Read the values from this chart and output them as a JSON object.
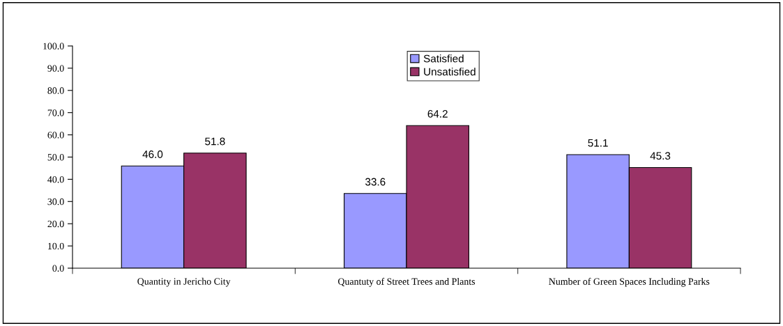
{
  "chart_data": {
    "type": "bar",
    "categories": [
      "Quantity in Jericho City",
      "Quantuty of Street Trees and Plants",
      "Number of Green Spaces Including Parks"
    ],
    "series": [
      {
        "name": "Satisfied",
        "color": "#9999ff",
        "values": [
          46.0,
          33.6,
          51.1
        ],
        "value_labels": [
          "46.0",
          "33.6",
          "51.1"
        ]
      },
      {
        "name": "Unsatisfied",
        "color": "#993366",
        "values": [
          51.8,
          64.2,
          45.3
        ],
        "value_labels": [
          "51.8",
          "64.2",
          "45.3"
        ]
      }
    ],
    "ylim": [
      0,
      100
    ],
    "yticks": [
      {
        "value": 0,
        "label": "0.0"
      },
      {
        "value": 10,
        "label": "10.0"
      },
      {
        "value": 20,
        "label": "20.0"
      },
      {
        "value": 30,
        "label": "30.0"
      },
      {
        "value": 40,
        "label": "40.0"
      },
      {
        "value": 50,
        "label": "50.0"
      },
      {
        "value": 60,
        "label": "60.0"
      },
      {
        "value": 70,
        "label": "70.0"
      },
      {
        "value": 80,
        "label": "80.0"
      },
      {
        "value": 90,
        "label": "90.0"
      },
      {
        "value": 100,
        "label": "100.0"
      }
    ],
    "grid": false,
    "legend": "top"
  }
}
